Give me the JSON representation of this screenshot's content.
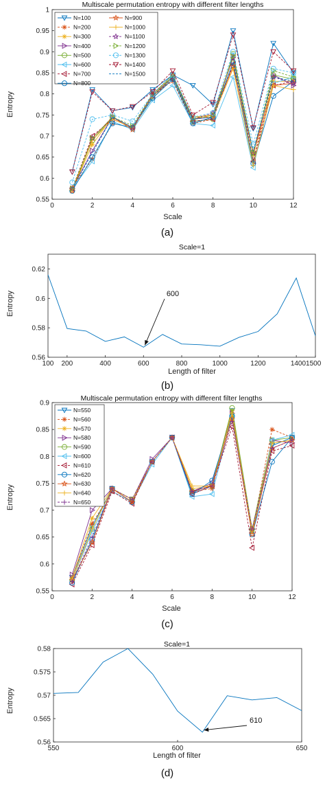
{
  "chart_data": [
    {
      "type": "line",
      "title": "Multiscale permutation entropy with different filter lengths",
      "xlabel": "Scale",
      "ylabel": "Entropy",
      "sublabel": "(a)",
      "xlim": [
        0,
        12
      ],
      "ylim": [
        0.55,
        1
      ],
      "xticks": [
        "0",
        "2",
        "4",
        "6",
        "8",
        "10",
        "12"
      ],
      "yticks": [
        "0.55",
        "0.6",
        "0.65",
        "0.7",
        "0.75",
        "0.8",
        "0.85",
        "0.9",
        "0.95",
        "1"
      ],
      "x": [
        1,
        2,
        3,
        4,
        5,
        6,
        7,
        8,
        9,
        10,
        11,
        12
      ],
      "legend_position": "top-left",
      "series": [
        {
          "name": "N=100",
          "color": "#0072BD",
          "dash": "solid",
          "marker": "triangle-down",
          "values": [
            0.615,
            0.81,
            0.76,
            0.768,
            0.81,
            0.845,
            0.82,
            0.775,
            0.95,
            0.718,
            0.92,
            0.85
          ]
        },
        {
          "name": "N=200",
          "color": "#D95319",
          "dash": "dashed",
          "marker": "asterisk",
          "values": [
            0.578,
            0.645,
            0.73,
            0.72,
            0.8,
            0.83,
            0.73,
            0.74,
            0.89,
            0.64,
            0.84,
            0.83
          ]
        },
        {
          "name": "N=300",
          "color": "#EDB120",
          "dash": "solid",
          "marker": "asterisk",
          "values": [
            0.572,
            0.68,
            0.745,
            0.72,
            0.79,
            0.84,
            0.745,
            0.75,
            0.885,
            0.655,
            0.83,
            0.83
          ]
        },
        {
          "name": "N=400",
          "color": "#7E2F8E",
          "dash": "solid",
          "marker": "triangle-right",
          "values": [
            0.575,
            0.665,
            0.745,
            0.72,
            0.795,
            0.84,
            0.74,
            0.745,
            0.89,
            0.66,
            0.845,
            0.82
          ]
        },
        {
          "name": "N=500",
          "color": "#77AC30",
          "dash": "solid",
          "marker": "circle",
          "values": [
            0.57,
            0.69,
            0.745,
            0.72,
            0.8,
            0.84,
            0.735,
            0.74,
            0.895,
            0.66,
            0.845,
            0.835
          ]
        },
        {
          "name": "N=600",
          "color": "#4DBEEE",
          "dash": "solid",
          "marker": "triangle-left",
          "values": [
            0.575,
            0.64,
            0.735,
            0.715,
            0.785,
            0.82,
            0.73,
            0.725,
            0.84,
            0.625,
            0.825,
            0.84
          ]
        },
        {
          "name": "N=700",
          "color": "#A2142F",
          "dash": "dashed",
          "marker": "triangle-left",
          "values": [
            0.575,
            0.7,
            0.74,
            0.72,
            0.795,
            0.835,
            0.735,
            0.74,
            0.87,
            0.64,
            0.82,
            0.83
          ]
        },
        {
          "name": "N=800",
          "color": "#0072BD",
          "dash": "solid",
          "marker": "circle",
          "values": [
            0.57,
            0.65,
            0.73,
            0.72,
            0.79,
            0.835,
            0.73,
            0.745,
            0.875,
            0.635,
            0.795,
            0.83
          ]
        },
        {
          "name": "N=900",
          "color": "#D95319",
          "dash": "solid",
          "marker": "star",
          "values": [
            0.57,
            0.695,
            0.745,
            0.715,
            0.8,
            0.845,
            0.74,
            0.75,
            0.865,
            0.66,
            0.82,
            0.825
          ]
        },
        {
          "name": "N=1000",
          "color": "#EDB120",
          "dash": "solid",
          "marker": "plus",
          "values": [
            0.575,
            0.69,
            0.74,
            0.72,
            0.795,
            0.845,
            0.745,
            0.745,
            0.86,
            0.63,
            0.82,
            0.81
          ]
        },
        {
          "name": "N=1100",
          "color": "#7E2F8E",
          "dash": "dashed",
          "marker": "star",
          "values": [
            0.575,
            0.695,
            0.745,
            0.72,
            0.8,
            0.845,
            0.74,
            0.755,
            0.885,
            0.66,
            0.84,
            0.825
          ]
        },
        {
          "name": "N=1200",
          "color": "#77AC30",
          "dash": "dashed",
          "marker": "triangle-right",
          "values": [
            0.575,
            0.695,
            0.745,
            0.725,
            0.8,
            0.845,
            0.74,
            0.75,
            0.89,
            0.66,
            0.855,
            0.84
          ]
        },
        {
          "name": "N=1300",
          "color": "#4DBEEE",
          "dash": "dashed",
          "marker": "circle",
          "values": [
            0.59,
            0.74,
            0.75,
            0.735,
            0.8,
            0.845,
            0.745,
            0.755,
            0.9,
            0.68,
            0.86,
            0.85
          ]
        },
        {
          "name": "N=1400",
          "color": "#A2142F",
          "dash": "dashed",
          "marker": "triangle-down",
          "values": [
            0.615,
            0.805,
            0.76,
            0.77,
            0.805,
            0.855,
            0.75,
            0.78,
            0.94,
            0.72,
            0.9,
            0.855
          ]
        },
        {
          "name": "N=1500",
          "color": "#0072BD",
          "dash": "dashed",
          "marker": "none",
          "values": [
            0.575,
            0.66,
            0.745,
            0.72,
            0.795,
            0.84,
            0.74,
            0.745,
            0.875,
            0.665,
            0.84,
            0.83
          ]
        }
      ]
    },
    {
      "type": "line",
      "title": "Scale=1",
      "xlabel": "Length of filter",
      "ylabel": "Entropy",
      "sublabel": "(b)",
      "xlim": [
        100,
        1500
      ],
      "ylim": [
        0.56,
        0.63
      ],
      "xticks": [
        "100",
        "200",
        "400",
        "600",
        "800",
        "1000",
        "1200",
        "14001500"
      ],
      "yticks": [
        "0.56",
        "0.58",
        "0.6",
        "0.62"
      ],
      "series": [
        {
          "name": "",
          "color": "#0072BD",
          "x": [
            100,
            200,
            300,
            400,
            500,
            600,
            700,
            800,
            900,
            1000,
            1100,
            1200,
            1300,
            1400,
            1500
          ],
          "values": [
            0.616,
            0.5795,
            0.5778,
            0.5708,
            0.5738,
            0.5668,
            0.5755,
            0.569,
            0.5685,
            0.5675,
            0.5735,
            0.5775,
            0.5895,
            0.6138,
            0.5745
          ]
        }
      ],
      "annotation": {
        "text": "600",
        "x": 600,
        "y": 0.5668
      }
    },
    {
      "type": "line",
      "title": "Multiscale permutation entropy with different filter lengths",
      "xlabel": "Scale",
      "ylabel": "Entropy",
      "sublabel": "(c)",
      "xlim": [
        0,
        12
      ],
      "ylim": [
        0.55,
        0.9
      ],
      "xticks": [
        "0",
        "2",
        "4",
        "6",
        "8",
        "10",
        "12"
      ],
      "yticks": [
        "0.55",
        "0.6",
        "0.65",
        "0.7",
        "0.75",
        "0.8",
        "0.85",
        "0.9"
      ],
      "x": [
        1,
        2,
        3,
        4,
        5,
        6,
        7,
        8,
        9,
        10,
        11,
        12
      ],
      "legend_position": "top-left",
      "series": [
        {
          "name": "N=550",
          "color": "#0072BD",
          "dash": "solid",
          "marker": "triangle-down",
          "values": [
            0.575,
            0.67,
            0.74,
            0.72,
            0.79,
            0.835,
            0.73,
            0.745,
            0.885,
            0.66,
            0.82,
            0.835
          ]
        },
        {
          "name": "N=560",
          "color": "#D95319",
          "dash": "dashed",
          "marker": "asterisk",
          "values": [
            0.575,
            0.675,
            0.735,
            0.715,
            0.79,
            0.835,
            0.735,
            0.74,
            0.875,
            0.66,
            0.85,
            0.835
          ]
        },
        {
          "name": "N=570",
          "color": "#EDB120",
          "dash": "solid",
          "marker": "asterisk",
          "values": [
            0.575,
            0.685,
            0.74,
            0.72,
            0.79,
            0.835,
            0.74,
            0.745,
            0.885,
            0.66,
            0.825,
            0.83
          ]
        },
        {
          "name": "N=580",
          "color": "#7E2F8E",
          "dash": "solid",
          "marker": "triangle-right",
          "values": [
            0.58,
            0.7,
            0.74,
            0.72,
            0.795,
            0.835,
            0.735,
            0.75,
            0.88,
            0.665,
            0.83,
            0.825
          ]
        },
        {
          "name": "N=590",
          "color": "#77AC30",
          "dash": "solid",
          "marker": "circle",
          "values": [
            0.57,
            0.665,
            0.74,
            0.72,
            0.79,
            0.835,
            0.735,
            0.745,
            0.89,
            0.665,
            0.83,
            0.835
          ]
        },
        {
          "name": "N=600",
          "color": "#4DBEEE",
          "dash": "solid",
          "marker": "triangle-left",
          "values": [
            0.57,
            0.66,
            0.735,
            0.715,
            0.785,
            0.835,
            0.725,
            0.73,
            0.875,
            0.655,
            0.83,
            0.84
          ]
        },
        {
          "name": "N=610",
          "color": "#A2142F",
          "dash": "dashed",
          "marker": "triangle-left",
          "values": [
            0.562,
            0.635,
            0.735,
            0.712,
            0.79,
            0.835,
            0.73,
            0.745,
            0.855,
            0.63,
            0.81,
            0.82
          ]
        },
        {
          "name": "N=620",
          "color": "#0072BD",
          "dash": "solid",
          "marker": "circle",
          "values": [
            0.565,
            0.645,
            0.74,
            0.715,
            0.79,
            0.835,
            0.73,
            0.755,
            0.875,
            0.655,
            0.79,
            0.835
          ]
        },
        {
          "name": "N=630",
          "color": "#D95319",
          "dash": "solid",
          "marker": "star",
          "values": [
            0.57,
            0.64,
            0.74,
            0.715,
            0.79,
            0.835,
            0.735,
            0.745,
            0.87,
            0.655,
            0.815,
            0.83
          ]
        },
        {
          "name": "N=640",
          "color": "#EDB120",
          "dash": "solid",
          "marker": "plus",
          "values": [
            0.57,
            0.665,
            0.74,
            0.72,
            0.79,
            0.835,
            0.745,
            0.745,
            0.88,
            0.66,
            0.825,
            0.83
          ]
        },
        {
          "name": "N=650",
          "color": "#7E2F8E",
          "dash": "dashed",
          "marker": "plus",
          "values": [
            0.567,
            0.65,
            0.74,
            0.72,
            0.79,
            0.835,
            0.735,
            0.745,
            0.865,
            0.665,
            0.815,
            0.83
          ]
        }
      ]
    },
    {
      "type": "line",
      "title": "Scale=1",
      "xlabel": "Length of filter",
      "ylabel": "Entropy",
      "sublabel": "(d)",
      "xlim": [
        550,
        650
      ],
      "ylim": [
        0.56,
        0.58
      ],
      "xticks": [
        "550",
        "600",
        "650"
      ],
      "yticks": [
        "0.56",
        "0.565",
        "0.57",
        "0.575",
        "0.58"
      ],
      "series": [
        {
          "name": "",
          "color": "#0072BD",
          "x": [
            550,
            560,
            570,
            580,
            590,
            600,
            610,
            620,
            630,
            640,
            650
          ],
          "values": [
            0.5704,
            0.5706,
            0.5771,
            0.58,
            0.5745,
            0.5666,
            0.5621,
            0.5699,
            0.569,
            0.5695,
            0.5667
          ]
        }
      ],
      "annotation": {
        "text": "610",
        "x": 610,
        "y": 0.5621
      }
    }
  ]
}
